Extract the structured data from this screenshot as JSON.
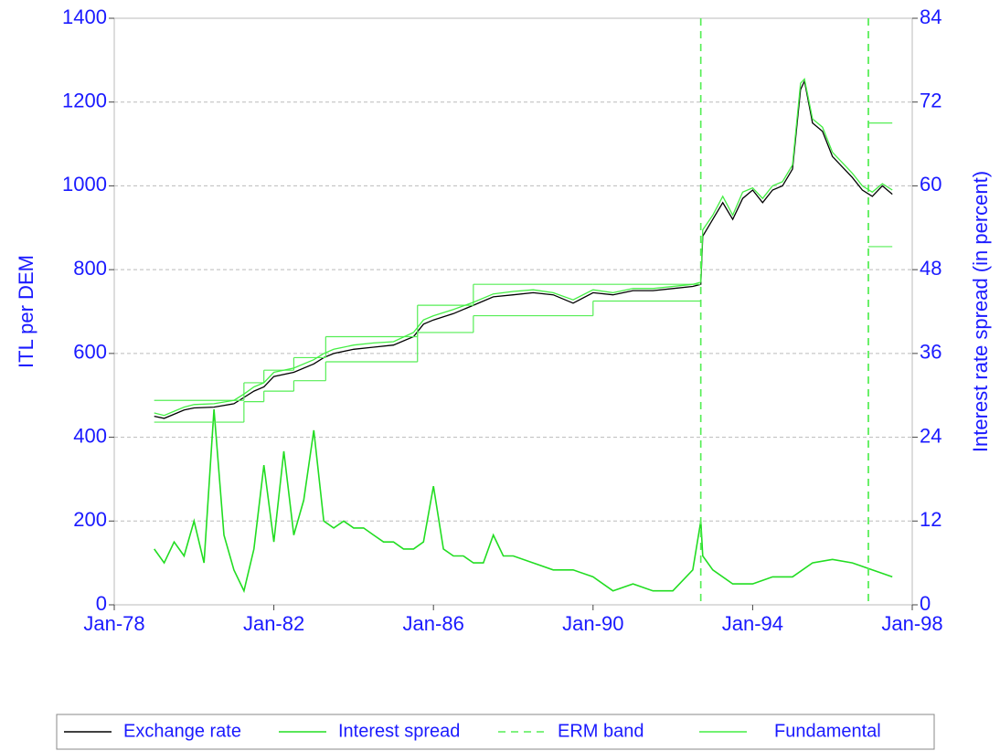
{
  "chart_data": {
    "type": "line",
    "y_label": "ITL per DEM",
    "y2_label": "Interest rate spread (in percent)",
    "xlim": [
      1978,
      1998
    ],
    "xticks": [
      {
        "value": 1978,
        "label": "Jan-78"
      },
      {
        "value": 1982,
        "label": "Jan-82"
      },
      {
        "value": 1986,
        "label": "Jan-86"
      },
      {
        "value": 1990,
        "label": "Jan-90"
      },
      {
        "value": 1994,
        "label": "Jan-94"
      },
      {
        "value": 1998,
        "label": "Jan-98"
      }
    ],
    "ylim": [
      0,
      1400
    ],
    "yticks": [
      0,
      200,
      400,
      600,
      800,
      1000,
      1200,
      1400
    ],
    "y2lim": [
      0,
      84
    ],
    "y2ticks": [
      0,
      12,
      24,
      36,
      48,
      60,
      72,
      84
    ],
    "grid": true,
    "legend": "bottom",
    "series": [
      {
        "name": "Exchange rate",
        "color": "#000000",
        "x": [
          1979.0,
          1979.25,
          1979.5,
          1979.75,
          1980.0,
          1980.5,
          1981.0,
          1981.25,
          1981.5,
          1981.75,
          1982.0,
          1982.5,
          1983.0,
          1983.25,
          1983.5,
          1984.0,
          1984.5,
          1985.0,
          1985.5,
          1985.75,
          1986.0,
          1986.5,
          1987.0,
          1987.5,
          1988.0,
          1988.5,
          1989.0,
          1989.5,
          1990.0,
          1990.5,
          1991.0,
          1991.5,
          1992.0,
          1992.5,
          1992.7,
          1992.75,
          1993.0,
          1993.25,
          1993.5,
          1993.75,
          1994.0,
          1994.25,
          1994.5,
          1994.75,
          1995.0,
          1995.2,
          1995.3,
          1995.5,
          1995.75,
          1996.0,
          1996.5,
          1996.75,
          1997.0,
          1997.25,
          1997.5
        ],
        "values": [
          450,
          445,
          455,
          465,
          470,
          472,
          480,
          495,
          510,
          520,
          545,
          555,
          575,
          590,
          600,
          610,
          615,
          620,
          640,
          670,
          680,
          695,
          715,
          735,
          740,
          745,
          740,
          720,
          745,
          740,
          750,
          750,
          755,
          760,
          765,
          880,
          920,
          960,
          920,
          970,
          990,
          960,
          990,
          1000,
          1040,
          1230,
          1250,
          1150,
          1130,
          1070,
          1020,
          990,
          975,
          1000,
          980
        ]
      },
      {
        "name": "Interest spread",
        "color": "#22dd22",
        "axis": "y2",
        "x": [
          1979.0,
          1979.25,
          1979.5,
          1979.75,
          1980.0,
          1980.25,
          1980.5,
          1980.75,
          1981.0,
          1981.25,
          1981.5,
          1981.75,
          1982.0,
          1982.25,
          1982.5,
          1982.75,
          1983.0,
          1983.25,
          1983.5,
          1983.75,
          1984.0,
          1984.25,
          1984.5,
          1984.75,
          1985.0,
          1985.25,
          1985.5,
          1985.75,
          1986.0,
          1986.25,
          1986.5,
          1986.75,
          1987.0,
          1987.25,
          1987.5,
          1987.75,
          1988.0,
          1988.5,
          1989.0,
          1989.5,
          1990.0,
          1990.5,
          1991.0,
          1991.5,
          1992.0,
          1992.5,
          1992.7,
          1992.75,
          1993.0,
          1993.5,
          1994.0,
          1994.5,
          1995.0,
          1995.5,
          1996.0,
          1996.5,
          1997.0,
          1997.5
        ],
        "values": [
          8,
          6,
          9,
          7,
          12,
          6,
          28,
          10,
          5,
          2,
          8,
          20,
          9,
          22,
          10,
          15,
          25,
          12,
          11,
          12,
          11,
          11,
          10,
          9,
          9,
          8,
          8,
          9,
          17,
          8,
          7,
          7,
          6,
          6,
          10,
          7,
          7,
          6,
          5,
          5,
          4,
          2,
          3,
          2,
          2,
          5,
          12,
          7,
          5,
          3,
          3,
          4,
          4,
          6,
          6.5,
          6,
          5,
          4
        ]
      },
      {
        "name": "ERM band",
        "color": "#55ee55",
        "dash": "8,6",
        "x": [
          1979.0,
          1981.25,
          1981.75,
          1982.5,
          1983.3,
          1985.6,
          1987.0,
          1990.0,
          1992.7,
          1996.9,
          1997.5
        ],
        "values": [
          488,
          530,
          560,
          590,
          640,
          715,
          765,
          765,
          null,
          1150,
          1150
        ],
        "lower": [
          436,
          485,
          510,
          535,
          580,
          650,
          690,
          725,
          null,
          855,
          855
        ]
      },
      {
        "name": "Fundamental",
        "color": "#44ee44",
        "x": [
          1979.0,
          1979.25,
          1979.5,
          1979.75,
          1980.0,
          1980.5,
          1981.0,
          1981.25,
          1981.5,
          1981.75,
          1982.0,
          1982.5,
          1983.0,
          1983.25,
          1983.5,
          1984.0,
          1984.5,
          1985.0,
          1985.5,
          1985.75,
          1986.0,
          1986.5,
          1987.0,
          1987.5,
          1988.0,
          1988.5,
          1989.0,
          1989.5,
          1990.0,
          1990.5,
          1991.0,
          1991.5,
          1992.0,
          1992.5,
          1992.7,
          1992.75,
          1993.0,
          1993.25,
          1993.5,
          1993.75,
          1994.0,
          1994.25,
          1994.5,
          1994.75,
          1995.0,
          1995.2,
          1995.3,
          1995.5,
          1995.75,
          1996.0,
          1996.5,
          1996.75,
          1997.0,
          1997.25,
          1997.5
        ],
        "values": [
          458,
          452,
          462,
          472,
          478,
          480,
          488,
          503,
          520,
          530,
          555,
          565,
          585,
          600,
          610,
          620,
          625,
          628,
          650,
          680,
          690,
          705,
          722,
          742,
          748,
          752,
          745,
          728,
          752,
          745,
          755,
          755,
          760,
          765,
          770,
          895,
          930,
          975,
          930,
          985,
          995,
          970,
          1000,
          1010,
          1050,
          1245,
          1255,
          1160,
          1140,
          1080,
          1030,
          1000,
          985,
          1005,
          990
        ]
      }
    ]
  }
}
